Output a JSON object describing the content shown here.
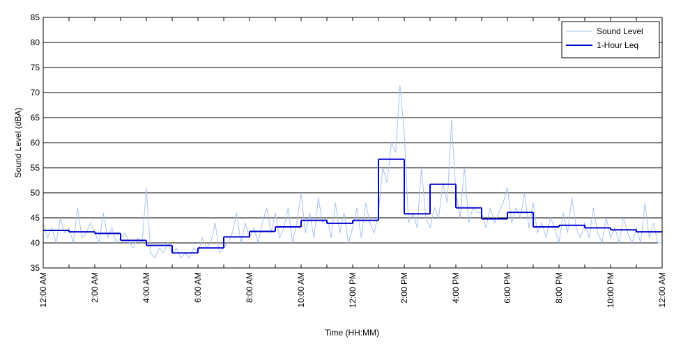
{
  "chart_data": {
    "type": "line",
    "xlabel": "Time (HH:MM)",
    "ylabel": "Sound Level (dBA)",
    "xlim": [
      0,
      1440
    ],
    "ylim": [
      35,
      85
    ],
    "yticks": [
      35,
      40,
      45,
      50,
      55,
      60,
      65,
      70,
      75,
      80,
      85
    ],
    "xticks": [
      {
        "value": 0,
        "label": "12:00 AM"
      },
      {
        "value": 120,
        "label": "2:00 AM"
      },
      {
        "value": 240,
        "label": "4:00 AM"
      },
      {
        "value": 360,
        "label": "6:00 AM"
      },
      {
        "value": 480,
        "label": "8:00 AM"
      },
      {
        "value": 600,
        "label": "10:00 AM"
      },
      {
        "value": 720,
        "label": "12:00 PM"
      },
      {
        "value": 840,
        "label": "2:00 PM"
      },
      {
        "value": 960,
        "label": "4:00 PM"
      },
      {
        "value": 1080,
        "label": "6:00 PM"
      },
      {
        "value": 1200,
        "label": "8:00 PM"
      },
      {
        "value": 1320,
        "label": "10:00 PM"
      },
      {
        "value": 1440,
        "label": "12:00 AM"
      }
    ],
    "xticks_minor": [
      60,
      180,
      300,
      420,
      540,
      660,
      780,
      900,
      1020,
      1140,
      1260,
      1380
    ],
    "grid": "y",
    "legend": "upper right",
    "series": [
      {
        "name": "Sound Level",
        "color": "#a9c1f2",
        "line_width": 1,
        "x": [
          0,
          10,
          20,
          30,
          40,
          50,
          60,
          70,
          80,
          90,
          100,
          110,
          120,
          130,
          140,
          150,
          160,
          170,
          180,
          190,
          200,
          210,
          220,
          230,
          240,
          250,
          260,
          270,
          280,
          290,
          300,
          310,
          320,
          330,
          340,
          350,
          360,
          370,
          380,
          390,
          400,
          410,
          420,
          430,
          440,
          450,
          460,
          470,
          480,
          490,
          500,
          510,
          520,
          530,
          540,
          550,
          560,
          570,
          580,
          590,
          600,
          610,
          620,
          630,
          640,
          650,
          660,
          670,
          680,
          690,
          700,
          710,
          720,
          730,
          740,
          750,
          760,
          770,
          780,
          790,
          800,
          810,
          820,
          830,
          840,
          850,
          860,
          870,
          880,
          890,
          900,
          910,
          920,
          930,
          940,
          950,
          960,
          970,
          980,
          990,
          1000,
          1010,
          1020,
          1030,
          1040,
          1050,
          1060,
          1070,
          1080,
          1090,
          1100,
          1110,
          1120,
          1130,
          1140,
          1150,
          1160,
          1170,
          1180,
          1190,
          1200,
          1210,
          1220,
          1230,
          1240,
          1250,
          1260,
          1270,
          1280,
          1290,
          1300,
          1310,
          1320,
          1330,
          1340,
          1350,
          1360,
          1370,
          1380,
          1390,
          1400,
          1410,
          1420,
          1430,
          1440
        ],
        "values": [
          44,
          41,
          43,
          40,
          45,
          42,
          43,
          40,
          47,
          41,
          42,
          44,
          42,
          40,
          46,
          41,
          43,
          40,
          41,
          42,
          40,
          39,
          41,
          40,
          51,
          38,
          37,
          39,
          38,
          40,
          38,
          39,
          37,
          38,
          37,
          39,
          38,
          41,
          39,
          40,
          44,
          38,
          39,
          40,
          42,
          46,
          40,
          44,
          41,
          43,
          40,
          44,
          47,
          42,
          46,
          41,
          43,
          47,
          40,
          44,
          50,
          42,
          46,
          41,
          49,
          44,
          45,
          41,
          48,
          42,
          46,
          40,
          43,
          47,
          41,
          48,
          44,
          42,
          46,
          55,
          52,
          60,
          58,
          71.5,
          62,
          44,
          46,
          43,
          55,
          45,
          43,
          47,
          45,
          52,
          48,
          64.5,
          50,
          45,
          55,
          44,
          47,
          46,
          46,
          43,
          47,
          44,
          46,
          48,
          51,
          44,
          47,
          45,
          50,
          43,
          48,
          42,
          44,
          41,
          45,
          43,
          40,
          46,
          42,
          49,
          43,
          41,
          44,
          41,
          47,
          42,
          40,
          45,
          41,
          43,
          40,
          45,
          42,
          40,
          43,
          40,
          48,
          41,
          44,
          40,
          40
        ]
      },
      {
        "name": "1-Hour Leq",
        "color": "#0000cc",
        "line_width": 2,
        "step": "post",
        "x": [
          0,
          60,
          120,
          180,
          240,
          300,
          360,
          420,
          480,
          540,
          600,
          660,
          720,
          780,
          840,
          900,
          960,
          1020,
          1080,
          1140,
          1200,
          1260,
          1320,
          1380
        ],
        "values": [
          42.5,
          42.2,
          41.9,
          40.5,
          39.5,
          38.0,
          39.0,
          41.2,
          42.3,
          43.2,
          44.5,
          43.9,
          44.5,
          56.7,
          45.8,
          51.7,
          47.0,
          44.8,
          46.1,
          43.2,
          43.5,
          43.0,
          42.6,
          42.2
        ]
      }
    ]
  }
}
